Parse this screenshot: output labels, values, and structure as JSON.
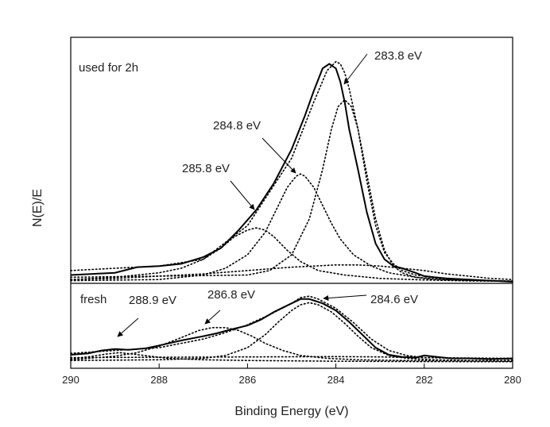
{
  "chart_data": {
    "type": "line",
    "xlabel": "Binding Energy (eV)",
    "ylabel": "N(E)/E",
    "xlim": [
      290,
      280
    ],
    "x_reversed": true,
    "xticks": [
      290,
      288,
      286,
      284,
      282,
      280
    ],
    "grid": false,
    "legend": "none",
    "colors": {
      "line": "#000000",
      "frame": "#000000"
    },
    "panels": [
      {
        "label": "used for 2h",
        "ylim": [
          0,
          100
        ],
        "series": [
          {
            "style": "solid",
            "x": [
              290,
              289.5,
              289,
              288.5,
              288,
              287.5,
              287,
              286.6,
              286.2,
              285.8,
              285.4,
              285.0,
              284.7,
              284.5,
              284.3,
              284.15,
              284.0,
              283.9,
              283.8,
              283.7,
              283.5,
              283.3,
              283.1,
              282.9,
              282.7,
              282.5,
              282.2,
              282.0,
              281.8,
              281.5,
              281,
              280.5,
              280
            ],
            "y": [
              3,
              3.5,
              4,
              6.5,
              7,
              8,
              11,
              15,
              23,
              32,
              44,
              59,
              74,
              85,
              95,
              97,
              95,
              89,
              80,
              68,
              50,
              31,
              17,
              10,
              7,
              6,
              4,
              2.5,
              2,
              1.5,
              1,
              0.5,
              0
            ]
          },
          {
            "style": "dotted",
            "x": [
              290,
              289,
              288,
              287,
              286,
              285,
              284.5,
              284.2,
              284.0,
              283.9,
              283.8,
              283.7,
              283.5,
              283.3,
              283.1,
              282.9,
              282.7,
              282.5,
              282.2,
              281.5,
              280.5,
              280
            ],
            "y": [
              5,
              6,
              7,
              10,
              25,
              55,
              80,
              94,
              98,
              97,
              93,
              86,
              68,
              45,
              25,
              13,
              8,
              5,
              3,
              1.5,
              0.5,
              0.3
            ]
          },
          {
            "name": "283.8 eV",
            "style": "dotted",
            "x": [
              290,
              288,
              286,
              285.5,
              285,
              284.6,
              284.3,
              284.1,
              283.95,
              283.8,
              283.65,
              283.5,
              283.3,
              283.1,
              282.9,
              282.7,
              282.5,
              282.2,
              281.8,
              281,
              280
            ],
            "y": [
              2,
              2.5,
              3,
              5,
              12,
              28,
              50,
              68,
              78,
              81,
              78,
              68,
              48,
              28,
              14,
              7,
              4,
              2,
              1,
              0.5,
              0.2
            ]
          },
          {
            "name": "284.8 eV",
            "style": "dotted",
            "x": [
              290,
              288,
              287,
              286.5,
              286,
              285.6,
              285.3,
              285.1,
              284.9,
              284.8,
              284.7,
              284.5,
              284.3,
              284.1,
              283.9,
              283.6,
              283.2,
              282.8,
              282.2,
              281.5,
              280.5,
              280
            ],
            "y": [
              0.5,
              1,
              3,
              6,
              12,
              22,
              34,
              42,
              47,
              48,
              47,
              42,
              34,
              26,
              19,
              12,
              7,
              4,
              2,
              1,
              0.5,
              0.3
            ]
          },
          {
            "name": "285.8 eV",
            "style": "dotted",
            "x": [
              290,
              289,
              288,
              287.5,
              287,
              286.6,
              286.3,
              286.0,
              285.8,
              285.6,
              285.4,
              285.1,
              284.8,
              284.4,
              283.8,
              283,
              282,
              281,
              280
            ],
            "y": [
              1,
              2,
              4,
              6,
              10,
              15,
              20,
              23,
              24,
              23,
              20,
              14,
              9,
              5,
              3,
              1.5,
              0.8,
              0.4,
              0.2
            ]
          },
          {
            "style": "dotted",
            "x": [
              290,
              289,
              288,
              287,
              286,
              285,
              284.5,
              284,
              283.5,
              283,
              282.5,
              282,
              281.5,
              281,
              280.5,
              280
            ],
            "y": [
              1,
              1.5,
              2.5,
              3.5,
              5,
              6.5,
              7,
              7.5,
              7.5,
              7,
              6,
              5,
              3.5,
              2.5,
              1.5,
              1
            ]
          }
        ]
      },
      {
        "label": "fresh",
        "ylim": [
          0,
          100
        ],
        "series": [
          {
            "style": "solid",
            "x": [
              290,
              289.6,
              289.3,
              289.0,
              288.7,
              288.3,
              288.0,
              287.5,
              287.0,
              286.7,
              286.4,
              286.0,
              285.7,
              285.4,
              285.0,
              284.8,
              284.6,
              284.3,
              284.0,
              283.7,
              283.4,
              283.1,
              282.8,
              282.5,
              282.2,
              282.0,
              281.7,
              281.4,
              281.0,
              280.5,
              280
            ],
            "y": [
              10,
              12,
              16,
              18,
              17,
              19,
              23,
              30,
              36,
              40,
              45,
              51,
              59,
              70,
              82,
              88,
              88,
              82,
              72,
              56,
              38,
              20,
              10,
              7,
              6,
              9,
              7,
              5,
              5,
              4,
              5
            ]
          },
          {
            "style": "dotted",
            "x": [
              290,
              289,
              288,
              287,
              286.5,
              286,
              285.5,
              285.0,
              284.8,
              284.6,
              284.4,
              284.0,
              283.6,
              283.2,
              282.8,
              282.4,
              282,
              281,
              280
            ],
            "y": [
              12,
              16,
              20,
              32,
              41,
              52,
              66,
              82,
              90,
              92,
              88,
              75,
              55,
              32,
              16,
              9,
              6,
              5,
              4
            ]
          },
          {
            "name": "284.6 eV",
            "style": "dotted",
            "x": [
              290,
              288,
              287,
              286.5,
              286,
              285.6,
              285.3,
              285.0,
              284.8,
              284.6,
              284.4,
              284.1,
              283.8,
              283.5,
              283.2,
              282.8,
              282.4,
              281.8,
              281,
              280
            ],
            "y": [
              2,
              3,
              5,
              9,
              20,
              38,
              56,
              72,
              80,
              83,
              80,
              70,
              54,
              36,
              20,
              9,
              5,
              3,
              2,
              2
            ]
          },
          {
            "name": "286.8 eV",
            "style": "dotted",
            "x": [
              290,
              289,
              288.5,
              288,
              287.5,
              287.1,
              286.8,
              286.5,
              286.2,
              285.9,
              285.6,
              285.2,
              284.8,
              284.2,
              283.5,
              282.5,
              281,
              280
            ],
            "y": [
              3,
              8,
              13,
              22,
              34,
              44,
              48,
              48,
              44,
              36,
              26,
              16,
              9,
              5,
              3,
              2,
              1.5,
              1
            ]
          },
          {
            "name": "288.9 eV",
            "style": "dotted",
            "x": [
              290,
              289.5,
              289.2,
              288.9,
              288.6,
              288.2,
              287.8,
              287,
              286,
              284,
              282,
              280
            ],
            "y": [
              4,
              8,
              11,
              13,
              11,
              8,
              5,
              3,
              2,
              1,
              0.5,
              0.3
            ]
          },
          {
            "style": "dotted",
            "x": [
              290,
              288,
              286,
              284,
              283,
              282,
              281,
              280
            ],
            "y": [
              6,
              6.5,
              7,
              7.5,
              7,
              6,
              5.5,
              5
            ]
          }
        ]
      }
    ],
    "annotations": [
      {
        "panel": 0,
        "text": "283.8 eV",
        "x": 283.75,
        "y": 80
      },
      {
        "panel": 0,
        "text": "284.8 eV",
        "x": 284.95,
        "y": 49
      },
      {
        "panel": 0,
        "text": "285.8 eV",
        "x": 285.8,
        "y": 26
      },
      {
        "panel": 1,
        "text": "288.9 eV",
        "x": 289.1,
        "y": 14
      },
      {
        "panel": 1,
        "text": "286.8 eV",
        "x": 286.9,
        "y": 39
      },
      {
        "panel": 1,
        "text": "284.6 eV",
        "x": 284.5,
        "y": 86
      }
    ]
  }
}
